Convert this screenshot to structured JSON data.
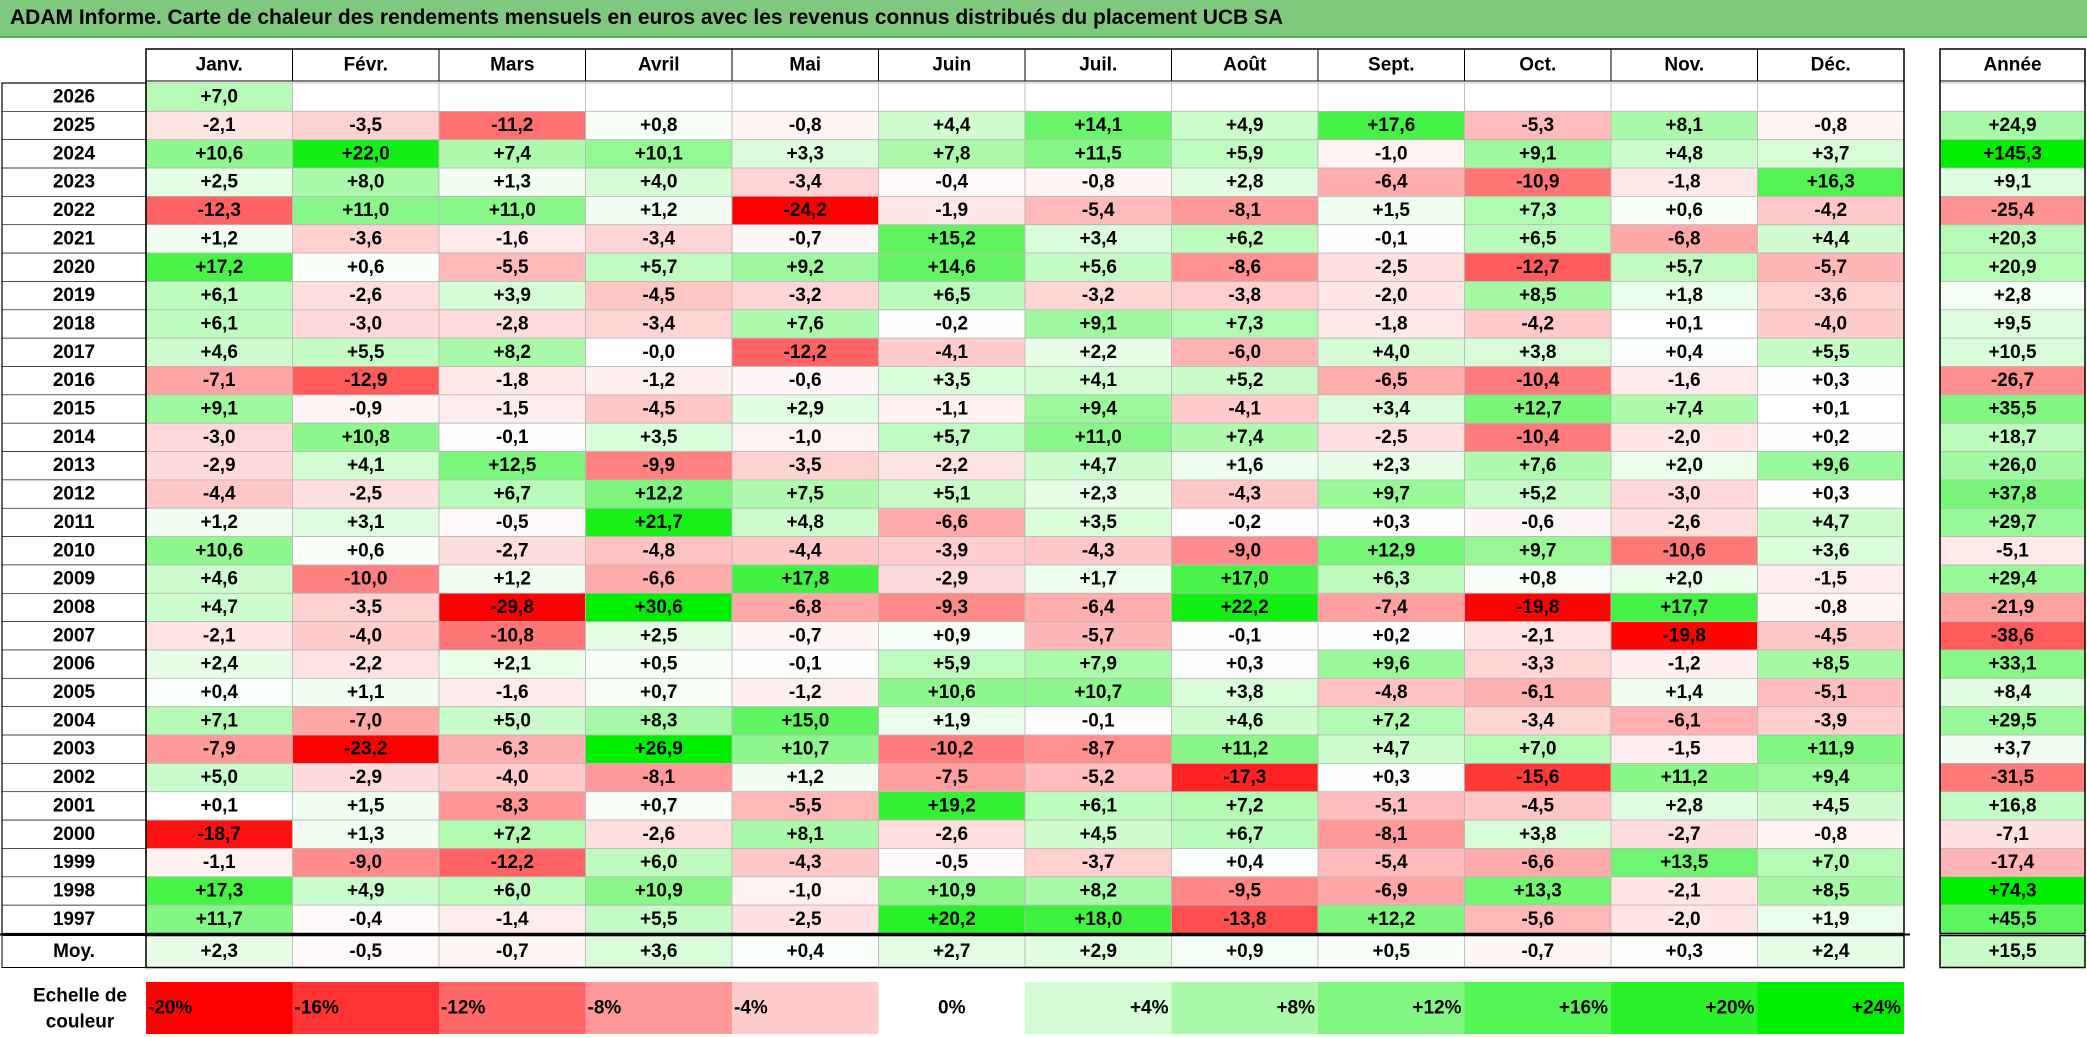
{
  "title": "ADAM Informe. Carte de chaleur des rendements mensuels en euros avec les revenus connus distribués du placement UCB SA",
  "chart_data": {
    "type": "heatmap",
    "months": [
      "Janv.",
      "Févr.",
      "Mars",
      "Avril",
      "Mai",
      "Juin",
      "Juil.",
      "Août",
      "Sept.",
      "Oct.",
      "Nov.",
      "Déc."
    ],
    "annual_label": "Année",
    "years": [
      "2026",
      "2025",
      "2024",
      "2023",
      "2022",
      "2021",
      "2020",
      "2019",
      "2018",
      "2017",
      "2016",
      "2015",
      "2014",
      "2013",
      "2012",
      "2011",
      "2010",
      "2009",
      "2008",
      "2007",
      "2006",
      "2005",
      "2004",
      "2003",
      "2002",
      "2001",
      "2000",
      "1999",
      "1998",
      "1997"
    ],
    "values": [
      [
        "+7,0",
        null,
        null,
        null,
        null,
        null,
        null,
        null,
        null,
        null,
        null,
        null
      ],
      [
        "-2,1",
        "-3,5",
        "-11,2",
        "+0,8",
        "-0,8",
        "+4,4",
        "+14,1",
        "+4,9",
        "+17,6",
        "-5,3",
        "+8,1",
        "-0,8"
      ],
      [
        "+10,6",
        "+22,0",
        "+7,4",
        "+10,1",
        "+3,3",
        "+7,8",
        "+11,5",
        "+5,9",
        "-1,0",
        "+9,1",
        "+4,8",
        "+3,7"
      ],
      [
        "+2,5",
        "+8,0",
        "+1,3",
        "+4,0",
        "-3,4",
        "-0,4",
        "-0,8",
        "+2,8",
        "-6,4",
        "-10,9",
        "-1,8",
        "+16,3"
      ],
      [
        "-12,3",
        "+11,0",
        "+11,0",
        "+1,2",
        "-24,2",
        "-1,9",
        "-5,4",
        "-8,1",
        "+1,5",
        "+7,3",
        "+0,6",
        "-4,2"
      ],
      [
        "+1,2",
        "-3,6",
        "-1,6",
        "-3,4",
        "-0,7",
        "+15,2",
        "+3,4",
        "+6,2",
        "-0,1",
        "+6,5",
        "-6,8",
        "+4,4"
      ],
      [
        "+17,2",
        "+0,6",
        "-5,5",
        "+5,7",
        "+9,2",
        "+14,6",
        "+5,6",
        "-8,6",
        "-2,5",
        "-12,7",
        "+5,7",
        "-5,7"
      ],
      [
        "+6,1",
        "-2,6",
        "+3,9",
        "-4,5",
        "-3,2",
        "+6,5",
        "-3,2",
        "-3,8",
        "-2,0",
        "+8,5",
        "+1,8",
        "-3,6"
      ],
      [
        "+6,1",
        "-3,0",
        "-2,8",
        "-3,4",
        "+7,6",
        "-0,2",
        "+9,1",
        "+7,3",
        "-1,8",
        "-4,2",
        "+0,1",
        "-4,0"
      ],
      [
        "+4,6",
        "+5,5",
        "+8,2",
        "-0,0",
        "-12,2",
        "-4,1",
        "+2,2",
        "-6,0",
        "+4,0",
        "+3,8",
        "+0,4",
        "+5,5"
      ],
      [
        "-7,1",
        "-12,9",
        "-1,8",
        "-1,2",
        "-0,6",
        "+3,5",
        "+4,1",
        "+5,2",
        "-6,5",
        "-10,4",
        "-1,6",
        "+0,3"
      ],
      [
        "+9,1",
        "-0,9",
        "-1,5",
        "-4,5",
        "+2,9",
        "-1,1",
        "+9,4",
        "-4,1",
        "+3,4",
        "+12,7",
        "+7,4",
        "+0,1"
      ],
      [
        "-3,0",
        "+10,8",
        "-0,1",
        "+3,5",
        "-1,0",
        "+5,7",
        "+11,0",
        "+7,4",
        "-2,5",
        "-10,4",
        "-2,0",
        "+0,2"
      ],
      [
        "-2,9",
        "+4,1",
        "+12,5",
        "-9,9",
        "-3,5",
        "-2,2",
        "+4,7",
        "+1,6",
        "+2,3",
        "+7,6",
        "+2,0",
        "+9,6"
      ],
      [
        "-4,4",
        "-2,5",
        "+6,7",
        "+12,2",
        "+7,5",
        "+5,1",
        "+2,3",
        "-4,3",
        "+9,7",
        "+5,2",
        "-3,0",
        "+0,3"
      ],
      [
        "+1,2",
        "+3,1",
        "-0,5",
        "+21,7",
        "+4,8",
        "-6,6",
        "+3,5",
        "-0,2",
        "+0,3",
        "-0,6",
        "-2,6",
        "+4,7"
      ],
      [
        "+10,6",
        "+0,6",
        "-2,7",
        "-4,8",
        "-4,4",
        "-3,9",
        "-4,3",
        "-9,0",
        "+12,9",
        "+9,7",
        "-10,6",
        "+3,6"
      ],
      [
        "+4,6",
        "-10,0",
        "+1,2",
        "-6,6",
        "+17,8",
        "-2,9",
        "+1,7",
        "+17,0",
        "+6,3",
        "+0,8",
        "+2,0",
        "-1,5"
      ],
      [
        "+4,7",
        "-3,5",
        "-29,8",
        "+30,6",
        "-6,8",
        "-9,3",
        "-6,4",
        "+22,2",
        "-7,4",
        "-19,8",
        "+17,7",
        "-0,8"
      ],
      [
        "-2,1",
        "-4,0",
        "-10,8",
        "+2,5",
        "-0,7",
        "+0,9",
        "-5,7",
        "-0,1",
        "+0,2",
        "-2,1",
        "-19,8",
        "-4,5"
      ],
      [
        "+2,4",
        "-2,2",
        "+2,1",
        "+0,5",
        "-0,1",
        "+5,9",
        "+7,9",
        "+0,3",
        "+9,6",
        "-3,3",
        "-1,2",
        "+8,5"
      ],
      [
        "+0,4",
        "+1,1",
        "-1,6",
        "+0,7",
        "-1,2",
        "+10,6",
        "+10,7",
        "+3,8",
        "-4,8",
        "-6,1",
        "+1,4",
        "-5,1"
      ],
      [
        "+7,1",
        "-7,0",
        "+5,0",
        "+8,3",
        "+15,0",
        "+1,9",
        "-0,1",
        "+4,6",
        "+7,2",
        "-3,4",
        "-6,1",
        "-3,9"
      ],
      [
        "-7,9",
        "-23,2",
        "-6,3",
        "+26,9",
        "+10,7",
        "-10,2",
        "-8,7",
        "+11,2",
        "+4,7",
        "+7,0",
        "-1,5",
        "+11,9"
      ],
      [
        "+5,0",
        "-2,9",
        "-4,0",
        "-8,1",
        "+1,2",
        "-7,5",
        "-5,2",
        "-17,3",
        "+0,3",
        "-15,6",
        "+11,2",
        "+9,4"
      ],
      [
        "+0,1",
        "+1,5",
        "-8,3",
        "+0,7",
        "-5,5",
        "+19,2",
        "+6,1",
        "+7,2",
        "-5,1",
        "-4,5",
        "+2,8",
        "+4,5"
      ],
      [
        "-18,7",
        "+1,3",
        "+7,2",
        "-2,6",
        "+8,1",
        "-2,6",
        "+4,5",
        "+6,7",
        "-8,1",
        "+3,8",
        "-2,7",
        "-0,8"
      ],
      [
        "-1,1",
        "-9,0",
        "-12,2",
        "+6,0",
        "-4,3",
        "-0,5",
        "-3,7",
        "+0,4",
        "-5,4",
        "-6,6",
        "+13,5",
        "+7,0"
      ],
      [
        "+17,3",
        "+4,9",
        "+6,0",
        "+10,9",
        "-1,0",
        "+10,9",
        "+8,2",
        "-9,5",
        "-6,9",
        "+13,3",
        "-2,1",
        "+8,5"
      ],
      [
        "+11,7",
        "-0,4",
        "-1,4",
        "+5,5",
        "-2,5",
        "+20,2",
        "+18,0",
        "-13,8",
        "+12,2",
        "-5,6",
        "-2,0",
        "+1,9"
      ]
    ],
    "annual": [
      null,
      "+24,9",
      "+145,3",
      "+9,1",
      "-25,4",
      "+20,3",
      "+20,9",
      "+2,8",
      "+9,5",
      "+10,5",
      "-26,7",
      "+35,5",
      "+18,7",
      "+26,0",
      "+37,8",
      "+29,7",
      "-5,1",
      "+29,4",
      "-21,9",
      "-38,6",
      "+33,1",
      "+8,4",
      "+29,5",
      "+3,7",
      "-31,5",
      "+16,8",
      "-7,1",
      "-17,4",
      "+74,3",
      "+45,5"
    ],
    "average_label": "Moy.",
    "averages": [
      "+2,3",
      "-0,5",
      "-0,7",
      "+3,6",
      "+0,4",
      "+2,7",
      "+2,9",
      "+0,9",
      "+0,5",
      "-0,7",
      "+0,3",
      "+2,4"
    ],
    "average_annual": "+15,5",
    "scale_label": [
      "Echelle de",
      "couleur"
    ],
    "scale": [
      "-20%",
      "-16%",
      "-12%",
      "-8%",
      "-4%",
      "0%",
      "+4%",
      "+8%",
      "+12%",
      "+16%",
      "+20%",
      "+24%"
    ],
    "colors": {
      "negative_max": "#ff0000",
      "neutral": "#ffffff",
      "positive_max": "#00ee00",
      "title_bg": "#7fc97f"
    }
  }
}
